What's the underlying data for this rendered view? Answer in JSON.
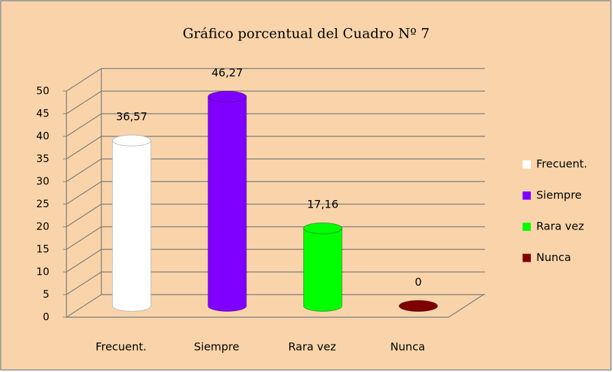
{
  "chart_data": {
    "type": "bar3d",
    "title": "Gráfico porcentual del Cuadro Nº 7",
    "categories": [
      "Frecuent.",
      "Siempre",
      "Rara vez",
      "Nunca"
    ],
    "values": [
      36.57,
      46.27,
      17.16,
      0
    ],
    "value_labels": [
      "36,57",
      "46,27",
      "17,16",
      "0"
    ],
    "colors": [
      "#ffffff",
      "#8000ff",
      "#00ff00",
      "#800000"
    ],
    "ylim": [
      0,
      50
    ],
    "yticks": [
      0,
      5,
      10,
      15,
      20,
      25,
      30,
      35,
      40,
      45,
      50
    ],
    "grid": true,
    "legend": "right"
  }
}
